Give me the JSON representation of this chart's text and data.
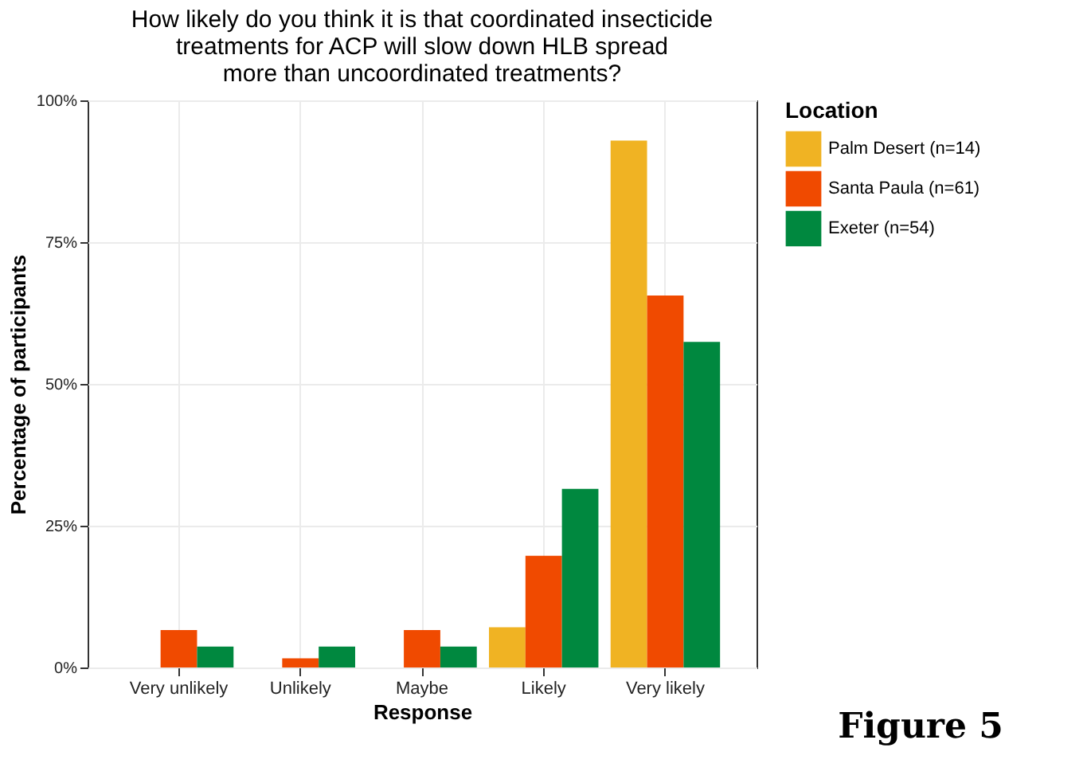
{
  "chart_data": {
    "type": "bar",
    "title": [
      "How likely do you think it is that coordinated insecticide",
      "treatments for ACP will slow down HLB spread",
      "more than uncoordinated treatments?"
    ],
    "xlabel": "Response",
    "ylabel": "Percentage of participants",
    "legend_title": "Location",
    "categories": [
      "Very unlikely",
      "Unlikely",
      "Maybe",
      "Likely",
      "Very likely"
    ],
    "series": [
      {
        "name": "Palm Desert (n=14)",
        "color": "#f0b323",
        "values": [
          0,
          0,
          0,
          7.1,
          92.9
        ]
      },
      {
        "name": "Santa Paula (n=61)",
        "color": "#f04a00",
        "values": [
          6.6,
          1.6,
          6.6,
          19.7,
          65.6
        ]
      },
      {
        "name": "Exeter (n=54)",
        "color": "#00883f",
        "values": [
          3.7,
          3.7,
          3.7,
          31.5,
          57.4
        ]
      }
    ],
    "ylim": [
      0,
      100
    ],
    "yticks": [
      {
        "value": 0,
        "label": "0%"
      },
      {
        "value": 25,
        "label": "25%"
      },
      {
        "value": 50,
        "label": "50%"
      },
      {
        "value": 75,
        "label": "75%"
      },
      {
        "value": 100,
        "label": "100%"
      }
    ],
    "grid": true,
    "legend": "right",
    "annotations": [
      "Figure 5"
    ]
  }
}
